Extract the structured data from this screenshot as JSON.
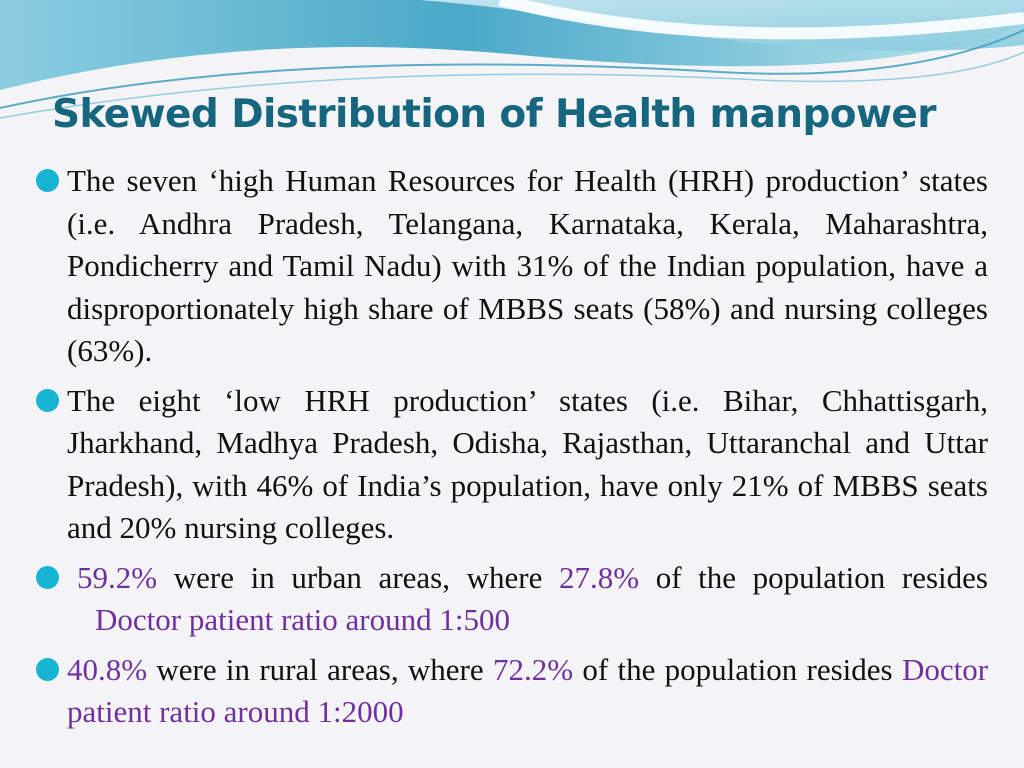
{
  "slide": {
    "title": "Skewed Distribution of Health manpower"
  },
  "colors": {
    "title": "#17667f",
    "bullet": "#17b3d3",
    "accent": "#7030a0",
    "body_text": "#111111",
    "header_wave": "#5ab5cf"
  },
  "bullets": [
    {
      "icon": "circle-bullet-icon",
      "text": "The seven ‘high Human Resources for Health (HRH) production’ states (i.e. Andhra Pradesh, Telangana, Karnataka, Kerala, Maharashtra, Pondicherry and Tamil Nadu) with 31% of the Indian population, have a disproportionately high share of MBBS seats (58%) and nursing colleges (63%)."
    },
    {
      "icon": "circle-bullet-icon",
      "text": "The eight ‘low HRH production’ states (i.e. Bihar, Chhattisgarh, Jharkhand, Madhya Pradesh, Odisha, Rajasthan, Uttaranchal and Uttar Pradesh), with 46% of India’s population, have only 21% of MBBS seats and 20% nursing colleges."
    },
    {
      "icon": "circle-bullet-icon",
      "urban_share": "59.2%",
      "text_1": "were in urban areas, where",
      "population_share": "27.8%",
      "text_2": "of the population resides",
      "ratio": "Doctor patient ratio around 1:500"
    },
    {
      "icon": "circle-bullet-icon",
      "rural_share": "40.8%",
      "text_1": "were in rural areas, where",
      "population_share": "72.2%",
      "text_2": "of the population resides",
      "ratio": "Doctor patient ratio around 1:2000"
    }
  ]
}
